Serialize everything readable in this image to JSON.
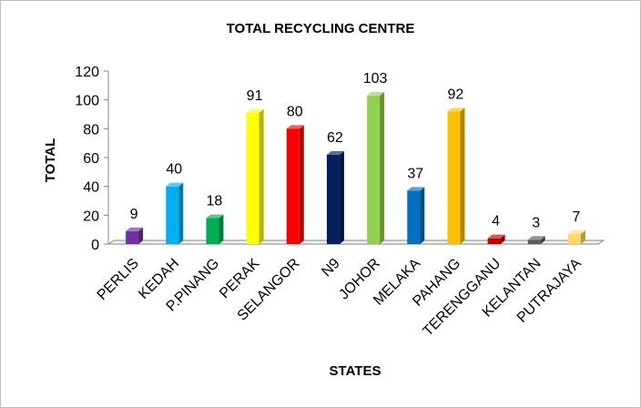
{
  "chart_data": {
    "type": "bar",
    "title": "TOTAL RECYCLING CENTRE",
    "xlabel": "STATES",
    "ylabel": "TOTAL",
    "ylim": [
      0,
      120
    ],
    "yticks": [
      0,
      20,
      40,
      60,
      80,
      100,
      120
    ],
    "grid": false,
    "legend": "none",
    "categories": [
      "PERLIS",
      "KEDAH",
      "P.PINANG",
      "PERAK",
      "SELANGOR",
      "N9",
      "JOHOR",
      "MELAKA",
      "PAHANG",
      "TERENGGANU",
      "KELANTAN",
      "PUTRAJAYA"
    ],
    "values": [
      9,
      40,
      18,
      91,
      80,
      62,
      103,
      37,
      92,
      4,
      3,
      7
    ],
    "colors": [
      "#7030a0",
      "#00b0f0",
      "#00b050",
      "#ffff00",
      "#ff0000",
      "#002060",
      "#92d050",
      "#0070c0",
      "#ffc000",
      "#c00000",
      "#595959",
      "#ffd966"
    ]
  }
}
